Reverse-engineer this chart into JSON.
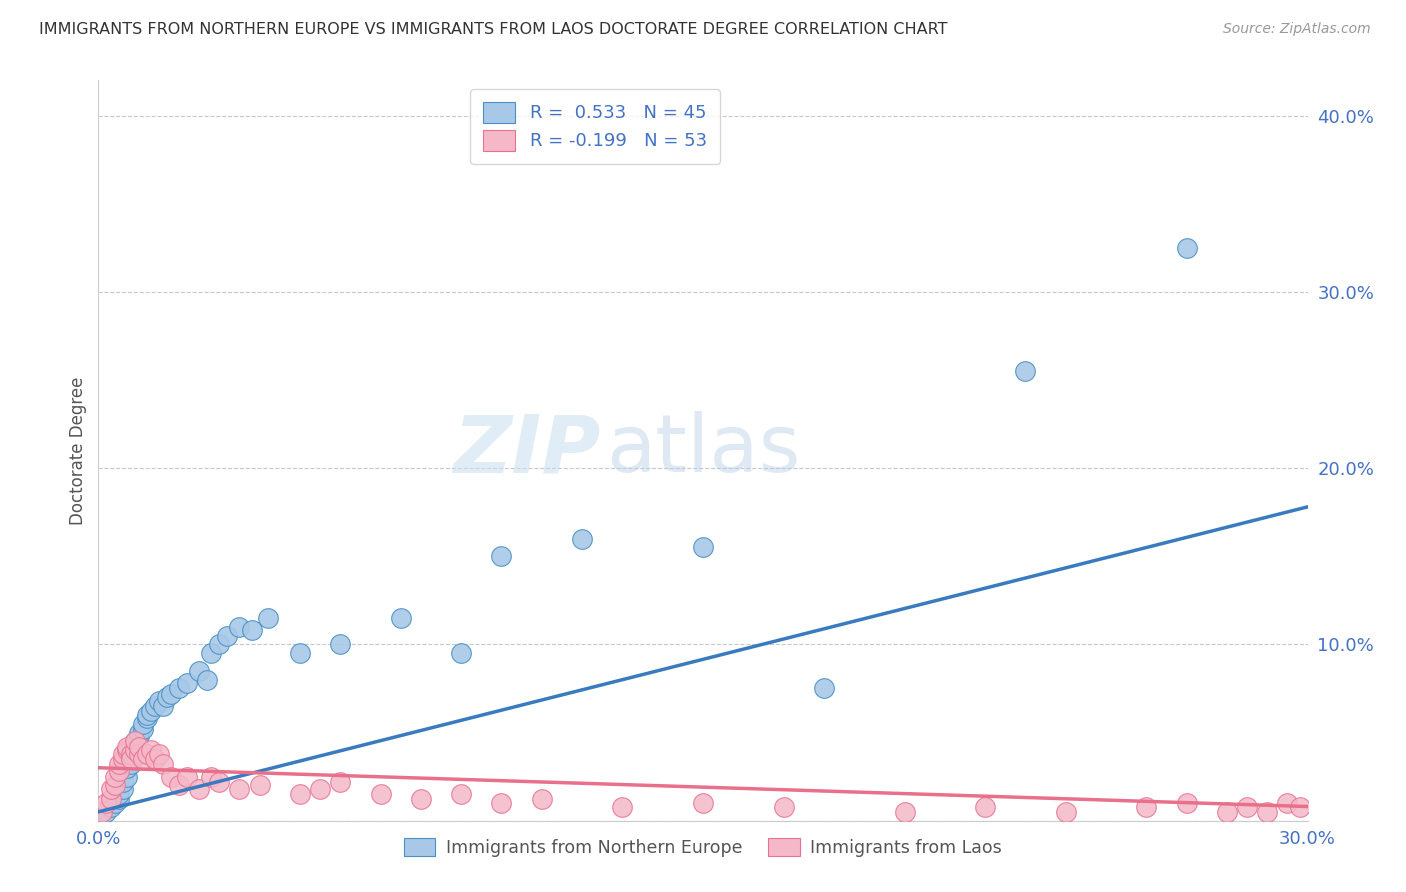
{
  "title": "IMMIGRANTS FROM NORTHERN EUROPE VS IMMIGRANTS FROM LAOS DOCTORATE DEGREE CORRELATION CHART",
  "source": "Source: ZipAtlas.com",
  "ylabel": "Doctorate Degree",
  "xlim": [
    0.0,
    0.3
  ],
  "ylim": [
    0.0,
    0.42
  ],
  "yticks": [
    0.0,
    0.1,
    0.2,
    0.3,
    0.4
  ],
  "ytick_labels": [
    "",
    "10.0%",
    "20.0%",
    "30.0%",
    "40.0%"
  ],
  "blue_color": "#a8c8e8",
  "pink_color": "#f4b8c8",
  "blue_edge_color": "#4a90c4",
  "pink_edge_color": "#e87090",
  "blue_line_color": "#3a7abf",
  "pink_line_color": "#e8708a",
  "watermark_zip": "ZIP",
  "watermark_atlas": "atlas",
  "blue_scatter_x": [
    0.002,
    0.003,
    0.004,
    0.005,
    0.005,
    0.006,
    0.006,
    0.007,
    0.007,
    0.008,
    0.008,
    0.009,
    0.009,
    0.01,
    0.01,
    0.011,
    0.011,
    0.012,
    0.012,
    0.013,
    0.014,
    0.015,
    0.016,
    0.017,
    0.018,
    0.02,
    0.022,
    0.025,
    0.027,
    0.028,
    0.03,
    0.032,
    0.035,
    0.038,
    0.042,
    0.05,
    0.06,
    0.075,
    0.09,
    0.1,
    0.12,
    0.15,
    0.18,
    0.23,
    0.27
  ],
  "blue_scatter_y": [
    0.005,
    0.008,
    0.01,
    0.012,
    0.015,
    0.018,
    0.022,
    0.025,
    0.03,
    0.032,
    0.038,
    0.04,
    0.045,
    0.048,
    0.05,
    0.052,
    0.055,
    0.058,
    0.06,
    0.062,
    0.065,
    0.068,
    0.065,
    0.07,
    0.072,
    0.075,
    0.078,
    0.085,
    0.08,
    0.095,
    0.1,
    0.105,
    0.11,
    0.108,
    0.115,
    0.095,
    0.1,
    0.115,
    0.095,
    0.15,
    0.16,
    0.155,
    0.075,
    0.255,
    0.325
  ],
  "pink_scatter_x": [
    0.001,
    0.002,
    0.003,
    0.003,
    0.004,
    0.004,
    0.005,
    0.005,
    0.006,
    0.006,
    0.007,
    0.007,
    0.008,
    0.008,
    0.009,
    0.009,
    0.01,
    0.01,
    0.011,
    0.012,
    0.013,
    0.014,
    0.015,
    0.016,
    0.018,
    0.02,
    0.022,
    0.025,
    0.028,
    0.03,
    0.035,
    0.04,
    0.05,
    0.055,
    0.06,
    0.07,
    0.08,
    0.09,
    0.1,
    0.11,
    0.13,
    0.15,
    0.17,
    0.2,
    0.22,
    0.24,
    0.26,
    0.27,
    0.28,
    0.285,
    0.29,
    0.295,
    0.298
  ],
  "pink_scatter_y": [
    0.005,
    0.01,
    0.012,
    0.018,
    0.02,
    0.025,
    0.028,
    0.032,
    0.035,
    0.038,
    0.04,
    0.042,
    0.038,
    0.035,
    0.04,
    0.045,
    0.038,
    0.042,
    0.035,
    0.038,
    0.04,
    0.035,
    0.038,
    0.032,
    0.025,
    0.02,
    0.025,
    0.018,
    0.025,
    0.022,
    0.018,
    0.02,
    0.015,
    0.018,
    0.022,
    0.015,
    0.012,
    0.015,
    0.01,
    0.012,
    0.008,
    0.01,
    0.008,
    0.005,
    0.008,
    0.005,
    0.008,
    0.01,
    0.005,
    0.008,
    0.005,
    0.01,
    0.008
  ],
  "blue_trend_x0": 0.0,
  "blue_trend_y0": 0.005,
  "blue_trend_x1": 0.3,
  "blue_trend_y1": 0.178,
  "pink_trend_x0": 0.0,
  "pink_trend_y0": 0.03,
  "pink_trend_x1": 0.3,
  "pink_trend_y1": 0.008
}
